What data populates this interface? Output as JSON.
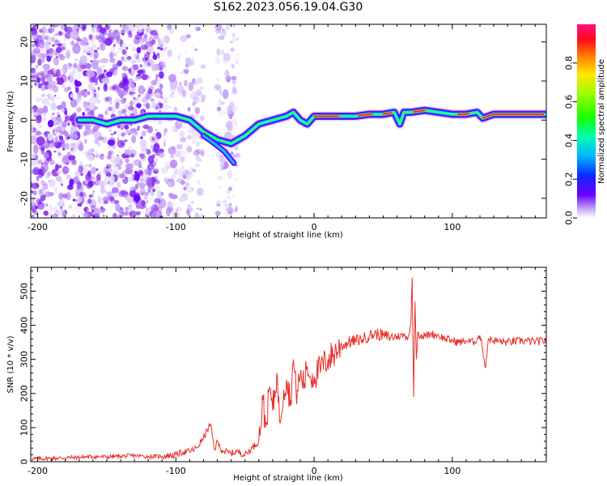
{
  "title": "S162.2023.056.19.04.G30",
  "chart_data": [
    {
      "type": "heatmap",
      "xlabel": "Height of straight line (km)",
      "ylabel": "Frequency (Hz)",
      "xlim": [
        -205,
        168
      ],
      "ylim": [
        -25,
        24.5
      ],
      "xticks": [
        -200,
        -100,
        0,
        100
      ],
      "xtick_labels": [
        "-200",
        "-100",
        "0",
        "100"
      ],
      "yticks": [
        -20,
        -10,
        0,
        10,
        20
      ],
      "ytick_labels": [
        "-20",
        "-10",
        "0",
        "10",
        "20"
      ],
      "colorbar": {
        "label": "Normalized spectral amplitude",
        "range": [
          0,
          1
        ],
        "ticks": [
          0,
          0.2,
          0.4,
          0.6,
          0.8
        ],
        "tick_labels": [
          "0.0",
          "0.2",
          "0.4",
          "0.6",
          "0.8"
        ],
        "colormap": "gist_rainbow_reversed"
      },
      "ridge": {
        "x": [
          -170,
          -160,
          -150,
          -140,
          -130,
          -120,
          -110,
          -100,
          -90,
          -80,
          -70,
          -60,
          -55,
          -50,
          -40,
          -30,
          -20,
          -15,
          -10,
          -5,
          0,
          10,
          20,
          30,
          40,
          50,
          58,
          62,
          65,
          70,
          80,
          90,
          100,
          110,
          118,
          122,
          130,
          140,
          150,
          168
        ],
        "y": [
          0,
          0,
          -1,
          0,
          0,
          1,
          1,
          1,
          0,
          -3,
          -5,
          -6,
          -5,
          -4,
          -1,
          0,
          1,
          2,
          0,
          -1,
          1,
          1,
          1,
          1,
          1.5,
          1.5,
          2,
          -1,
          2,
          2,
          2.5,
          2,
          1.5,
          1.5,
          2,
          0.5,
          1.5,
          1.5,
          1.5,
          1.5
        ]
      },
      "grid": false,
      "legend": "none"
    },
    {
      "type": "line",
      "xlabel": "Height of straight line (km)",
      "ylabel": "SNR (10 * v/v)",
      "xlim": [
        -205,
        168
      ],
      "ylim": [
        0,
        570
      ],
      "xticks": [
        -200,
        -100,
        0,
        100
      ],
      "xtick_labels": [
        "-200",
        "-100",
        "0",
        "100"
      ],
      "yticks": [
        0,
        100,
        200,
        300,
        400,
        500
      ],
      "ytick_labels": [
        "0",
        "100",
        "200",
        "300",
        "400",
        "500"
      ],
      "series_color": "#e8302a",
      "x": [
        -205,
        -190,
        -175,
        -160,
        -150,
        -140,
        -130,
        -120,
        -110,
        -100,
        -95,
        -90,
        -85,
        -80,
        -75,
        -72,
        -70,
        -68,
        -65,
        -60,
        -55,
        -50,
        -45,
        -40,
        -37,
        -35,
        -32,
        -30,
        -27,
        -25,
        -22,
        -20,
        -17,
        -15,
        -13,
        -10,
        -7,
        -5,
        -3,
        0,
        5,
        10,
        15,
        20,
        25,
        30,
        35,
        40,
        45,
        50,
        55,
        60,
        65,
        68,
        70,
        71,
        72,
        73,
        74,
        75,
        77,
        80,
        85,
        90,
        95,
        100,
        105,
        110,
        115,
        118,
        120,
        122,
        124,
        126,
        130,
        140,
        150,
        160,
        168
      ],
      "y": [
        8,
        10,
        12,
        15,
        14,
        16,
        18,
        15,
        16,
        20,
        28,
        30,
        40,
        70,
        110,
        35,
        60,
        40,
        30,
        25,
        30,
        20,
        40,
        60,
        180,
        100,
        220,
        150,
        260,
        120,
        210,
        240,
        180,
        300,
        200,
        250,
        230,
        280,
        250,
        250,
        275,
        300,
        320,
        340,
        350,
        355,
        360,
        370,
        375,
        370,
        365,
        368,
        370,
        365,
        400,
        540,
        190,
        470,
        300,
        380,
        370,
        368,
        375,
        370,
        360,
        355,
        350,
        355,
        350,
        360,
        370,
        330,
        275,
        360,
        355,
        350,
        355,
        352,
        355
      ]
    }
  ]
}
